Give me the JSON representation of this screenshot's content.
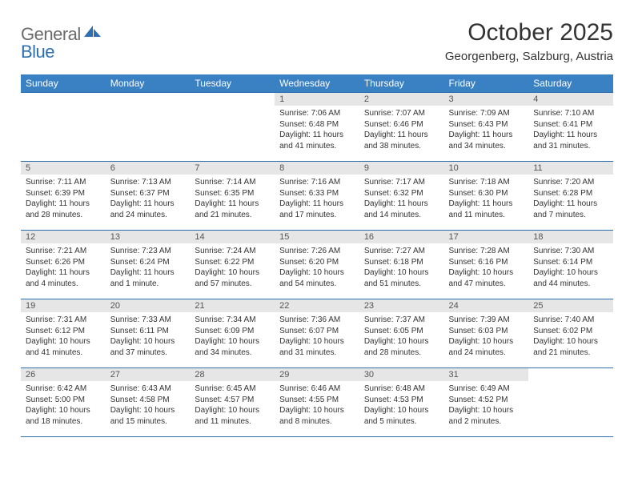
{
  "logo": {
    "word1": "General",
    "word2": "Blue"
  },
  "header": {
    "month_title": "October 2025",
    "location": "Georgenberg, Salzburg, Austria"
  },
  "colors": {
    "header_bg": "#3a81c4",
    "rule": "#2f6fb0",
    "daynum_bg": "#e6e6e6",
    "text": "#333333",
    "logo_gray": "#6b6b6b",
    "logo_blue": "#2f6fb0",
    "page_bg": "#ffffff"
  },
  "weekdays": [
    "Sunday",
    "Monday",
    "Tuesday",
    "Wednesday",
    "Thursday",
    "Friday",
    "Saturday"
  ],
  "weeks": [
    [
      null,
      null,
      null,
      {
        "n": "1",
        "sunrise": "7:06 AM",
        "sunset": "6:48 PM",
        "daylight": "11 hours and 41 minutes."
      },
      {
        "n": "2",
        "sunrise": "7:07 AM",
        "sunset": "6:46 PM",
        "daylight": "11 hours and 38 minutes."
      },
      {
        "n": "3",
        "sunrise": "7:09 AM",
        "sunset": "6:43 PM",
        "daylight": "11 hours and 34 minutes."
      },
      {
        "n": "4",
        "sunrise": "7:10 AM",
        "sunset": "6:41 PM",
        "daylight": "11 hours and 31 minutes."
      }
    ],
    [
      {
        "n": "5",
        "sunrise": "7:11 AM",
        "sunset": "6:39 PM",
        "daylight": "11 hours and 28 minutes."
      },
      {
        "n": "6",
        "sunrise": "7:13 AM",
        "sunset": "6:37 PM",
        "daylight": "11 hours and 24 minutes."
      },
      {
        "n": "7",
        "sunrise": "7:14 AM",
        "sunset": "6:35 PM",
        "daylight": "11 hours and 21 minutes."
      },
      {
        "n": "8",
        "sunrise": "7:16 AM",
        "sunset": "6:33 PM",
        "daylight": "11 hours and 17 minutes."
      },
      {
        "n": "9",
        "sunrise": "7:17 AM",
        "sunset": "6:32 PM",
        "daylight": "11 hours and 14 minutes."
      },
      {
        "n": "10",
        "sunrise": "7:18 AM",
        "sunset": "6:30 PM",
        "daylight": "11 hours and 11 minutes."
      },
      {
        "n": "11",
        "sunrise": "7:20 AM",
        "sunset": "6:28 PM",
        "daylight": "11 hours and 7 minutes."
      }
    ],
    [
      {
        "n": "12",
        "sunrise": "7:21 AM",
        "sunset": "6:26 PM",
        "daylight": "11 hours and 4 minutes."
      },
      {
        "n": "13",
        "sunrise": "7:23 AM",
        "sunset": "6:24 PM",
        "daylight": "11 hours and 1 minute."
      },
      {
        "n": "14",
        "sunrise": "7:24 AM",
        "sunset": "6:22 PM",
        "daylight": "10 hours and 57 minutes."
      },
      {
        "n": "15",
        "sunrise": "7:26 AM",
        "sunset": "6:20 PM",
        "daylight": "10 hours and 54 minutes."
      },
      {
        "n": "16",
        "sunrise": "7:27 AM",
        "sunset": "6:18 PM",
        "daylight": "10 hours and 51 minutes."
      },
      {
        "n": "17",
        "sunrise": "7:28 AM",
        "sunset": "6:16 PM",
        "daylight": "10 hours and 47 minutes."
      },
      {
        "n": "18",
        "sunrise": "7:30 AM",
        "sunset": "6:14 PM",
        "daylight": "10 hours and 44 minutes."
      }
    ],
    [
      {
        "n": "19",
        "sunrise": "7:31 AM",
        "sunset": "6:12 PM",
        "daylight": "10 hours and 41 minutes."
      },
      {
        "n": "20",
        "sunrise": "7:33 AM",
        "sunset": "6:11 PM",
        "daylight": "10 hours and 37 minutes."
      },
      {
        "n": "21",
        "sunrise": "7:34 AM",
        "sunset": "6:09 PM",
        "daylight": "10 hours and 34 minutes."
      },
      {
        "n": "22",
        "sunrise": "7:36 AM",
        "sunset": "6:07 PM",
        "daylight": "10 hours and 31 minutes."
      },
      {
        "n": "23",
        "sunrise": "7:37 AM",
        "sunset": "6:05 PM",
        "daylight": "10 hours and 28 minutes."
      },
      {
        "n": "24",
        "sunrise": "7:39 AM",
        "sunset": "6:03 PM",
        "daylight": "10 hours and 24 minutes."
      },
      {
        "n": "25",
        "sunrise": "7:40 AM",
        "sunset": "6:02 PM",
        "daylight": "10 hours and 21 minutes."
      }
    ],
    [
      {
        "n": "26",
        "sunrise": "6:42 AM",
        "sunset": "5:00 PM",
        "daylight": "10 hours and 18 minutes."
      },
      {
        "n": "27",
        "sunrise": "6:43 AM",
        "sunset": "4:58 PM",
        "daylight": "10 hours and 15 minutes."
      },
      {
        "n": "28",
        "sunrise": "6:45 AM",
        "sunset": "4:57 PM",
        "daylight": "10 hours and 11 minutes."
      },
      {
        "n": "29",
        "sunrise": "6:46 AM",
        "sunset": "4:55 PM",
        "daylight": "10 hours and 8 minutes."
      },
      {
        "n": "30",
        "sunrise": "6:48 AM",
        "sunset": "4:53 PM",
        "daylight": "10 hours and 5 minutes."
      },
      {
        "n": "31",
        "sunrise": "6:49 AM",
        "sunset": "4:52 PM",
        "daylight": "10 hours and 2 minutes."
      },
      null
    ]
  ],
  "labels": {
    "sunrise": "Sunrise:",
    "sunset": "Sunset:",
    "daylight": "Daylight:"
  }
}
